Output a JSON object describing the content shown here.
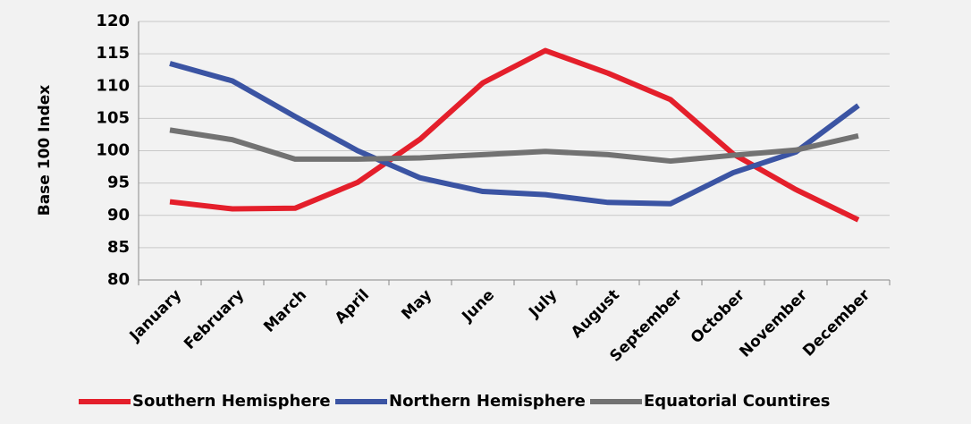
{
  "chart_data": {
    "type": "line",
    "ylabel": "Base 100 Index",
    "categories": [
      "January",
      "February",
      "March",
      "April",
      "May",
      "June",
      "July",
      "August",
      "September",
      "October",
      "November",
      "December"
    ],
    "series": [
      {
        "name": "Southern Hemisphere",
        "color": "#e41f2b",
        "values": [
          92.1,
          91.0,
          91.1,
          95.1,
          101.8,
          110.5,
          115.5,
          112.0,
          107.9,
          99.5,
          94.0,
          89.3
        ]
      },
      {
        "name": "Northern Hemisphere",
        "color": "#3b54a3",
        "values": [
          113.5,
          110.8,
          105.3,
          100.0,
          95.8,
          93.7,
          93.2,
          92.0,
          91.8,
          96.6,
          99.8,
          107.0
        ]
      },
      {
        "name": "Equatorial Countires",
        "color": "#727272",
        "values": [
          103.2,
          101.7,
          98.7,
          98.7,
          98.9,
          99.4,
          99.9,
          99.4,
          98.4,
          99.3,
          100.1,
          102.3
        ]
      }
    ],
    "ylim": [
      80,
      120
    ],
    "yticks": [
      80,
      85,
      90,
      95,
      100,
      105,
      110,
      115,
      120
    ],
    "grid": true,
    "legend": "bottom"
  }
}
